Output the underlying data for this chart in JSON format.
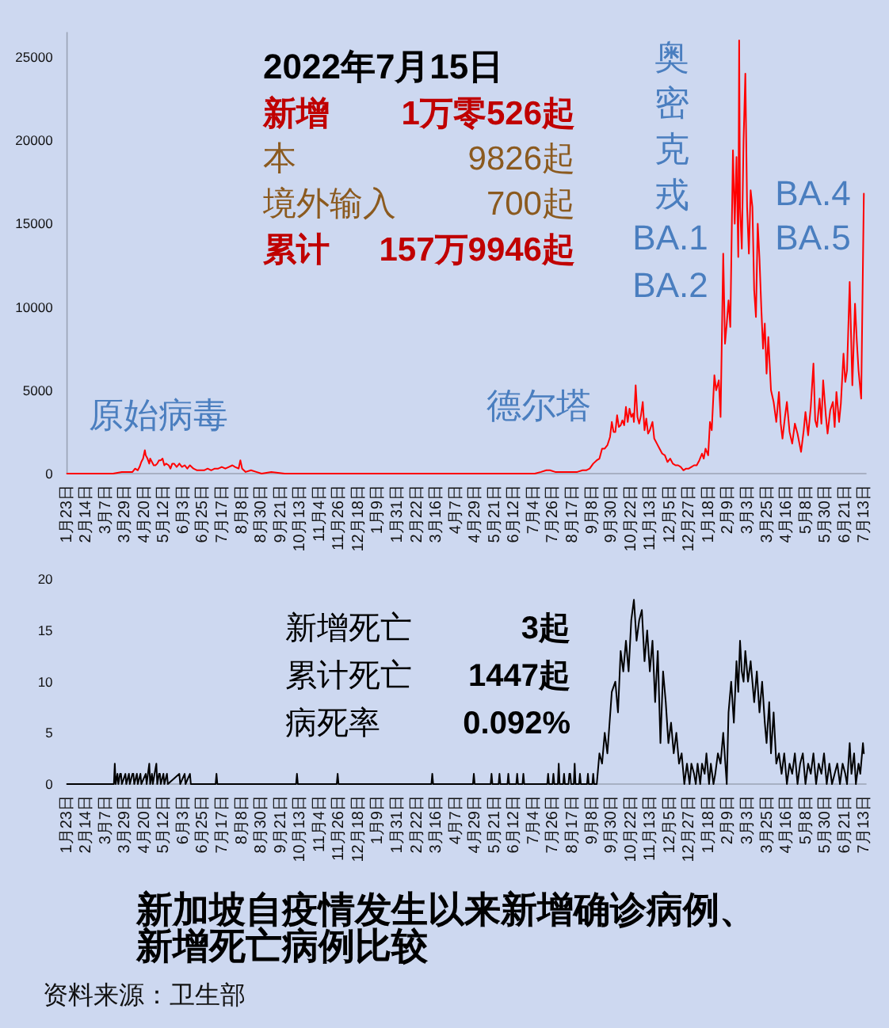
{
  "chart_data": [
    {
      "type": "line",
      "subtitle": "2022年7月15日",
      "x": [
        "2020-01-23",
        "2020-02-10",
        "2020-03-01",
        "2020-03-15",
        "2020-03-25",
        "2020-04-01",
        "2020-04-06",
        "2020-04-09",
        "2020-04-12",
        "2020-04-14",
        "2020-04-16",
        "2020-04-18",
        "2020-04-20",
        "2020-04-21",
        "2020-04-23",
        "2020-04-25",
        "2020-04-26",
        "2020-04-28",
        "2020-04-30",
        "2020-05-02",
        "2020-05-04",
        "2020-05-06",
        "2020-05-08",
        "2020-05-10",
        "2020-05-12",
        "2020-05-14",
        "2020-05-17",
        "2020-05-19",
        "2020-05-21",
        "2020-05-23",
        "2020-05-26",
        "2020-05-29",
        "2020-06-01",
        "2020-06-04",
        "2020-06-07",
        "2020-06-10",
        "2020-06-14",
        "2020-06-18",
        "2020-06-22",
        "2020-06-26",
        "2020-06-30",
        "2020-07-04",
        "2020-07-08",
        "2020-07-12",
        "2020-07-16",
        "2020-07-20",
        "2020-07-24",
        "2020-07-28",
        "2020-07-31",
        "2020-08-04",
        "2020-08-06",
        "2020-08-08",
        "2020-08-12",
        "2020-08-18",
        "2020-08-24",
        "2020-08-30",
        "2020-09-10",
        "2020-09-25",
        "2020-10-15",
        "2020-11-15",
        "2020-12-15",
        "2021-01-15",
        "2021-02-15",
        "2021-03-15",
        "2021-04-15",
        "2021-05-15",
        "2021-05-25",
        "2021-06-15",
        "2021-07-05",
        "2021-07-12",
        "2021-07-18",
        "2021-07-22",
        "2021-07-28",
        "2021-08-05",
        "2021-08-15",
        "2021-08-22",
        "2021-08-28",
        "2021-09-01",
        "2021-09-05",
        "2021-09-09",
        "2021-09-13",
        "2021-09-16",
        "2021-09-19",
        "2021-09-22",
        "2021-09-25",
        "2021-09-28",
        "2021-09-30",
        "2021-10-02",
        "2021-10-04",
        "2021-10-06",
        "2021-10-08",
        "2021-10-10",
        "2021-10-12",
        "2021-10-14",
        "2021-10-16",
        "2021-10-18",
        "2021-10-20",
        "2021-10-22",
        "2021-10-24",
        "2021-10-25",
        "2021-10-27",
        "2021-10-29",
        "2021-10-31",
        "2021-11-02",
        "2021-11-04",
        "2021-11-06",
        "2021-11-08",
        "2021-11-10",
        "2021-11-12",
        "2021-11-15",
        "2021-11-17",
        "2021-11-20",
        "2021-11-23",
        "2021-11-26",
        "2021-11-29",
        "2021-12-02",
        "2021-12-05",
        "2021-12-08",
        "2021-12-11",
        "2021-12-14",
        "2021-12-17",
        "2021-12-20",
        "2021-12-23",
        "2021-12-26",
        "2021-12-29",
        "2022-01-01",
        "2022-01-04",
        "2022-01-07",
        "2022-01-10",
        "2022-01-12",
        "2022-01-14",
        "2022-01-17",
        "2022-01-19",
        "2022-01-21",
        "2022-01-24",
        "2022-01-26",
        "2022-01-29",
        "2022-01-31",
        "2022-02-03",
        "2022-02-05",
        "2022-02-07",
        "2022-02-09",
        "2022-02-11",
        "2022-02-14",
        "2022-02-16",
        "2022-02-18",
        "2022-02-20",
        "2022-02-21",
        "2022-02-22",
        "2022-02-24",
        "2022-02-26",
        "2022-02-28",
        "2022-03-02",
        "2022-03-04",
        "2022-03-06",
        "2022-03-08",
        "2022-03-10",
        "2022-03-12",
        "2022-03-14",
        "2022-03-16",
        "2022-03-18",
        "2022-03-20",
        "2022-03-22",
        "2022-03-24",
        "2022-03-26",
        "2022-03-29",
        "2022-04-01",
        "2022-04-04",
        "2022-04-07",
        "2022-04-09",
        "2022-04-11",
        "2022-04-14",
        "2022-04-16",
        "2022-04-19",
        "2022-04-22",
        "2022-04-25",
        "2022-04-28",
        "2022-05-02",
        "2022-05-05",
        "2022-05-07",
        "2022-05-10",
        "2022-05-13",
        "2022-05-16",
        "2022-05-18",
        "2022-05-20",
        "2022-05-23",
        "2022-05-25",
        "2022-05-27",
        "2022-05-30",
        "2022-06-01",
        "2022-06-04",
        "2022-06-07",
        "2022-06-09",
        "2022-06-11",
        "2022-06-14",
        "2022-06-16",
        "2022-06-19",
        "2022-06-21",
        "2022-06-23",
        "2022-06-26",
        "2022-06-29",
        "2022-07-02",
        "2022-07-04",
        "2022-07-06",
        "2022-07-09",
        "2022-07-12"
      ],
      "series": [
        {
          "color": "#ff0000",
          "values": [
            0,
            0,
            0,
            0,
            100,
            100,
            100,
            300,
            200,
            400,
            700,
            900,
            1400,
            1100,
            900,
            600,
            900,
            700,
            500,
            500,
            600,
            800,
            800,
            900,
            500,
            600,
            500,
            300,
            600,
            600,
            400,
            600,
            400,
            500,
            300,
            500,
            300,
            200,
            200,
            200,
            300,
            200,
            300,
            300,
            400,
            300,
            400,
            500,
            400,
            300,
            800,
            300,
            100,
            200,
            100,
            0,
            100,
            0,
            0,
            0,
            0,
            0,
            0,
            0,
            0,
            0,
            0,
            0,
            0,
            100,
            200,
            200,
            100,
            100,
            100,
            100,
            200,
            200,
            300,
            600,
            800,
            900,
            1500,
            1500,
            1700,
            2200,
            3100,
            2500,
            2500,
            3500,
            2800,
            2900,
            3200,
            2900,
            4000,
            3100,
            3900,
            3400,
            3600,
            3100,
            5300,
            3400,
            3000,
            3500,
            4300,
            2600,
            3300,
            2400,
            2600,
            3100,
            2100,
            1800,
            1500,
            1200,
            1100,
            700,
            900,
            600,
            500,
            500,
            400,
            200,
            300,
            300,
            400,
            500,
            500,
            800,
            1200,
            900,
            1500,
            1100,
            3100,
            2600,
            5900,
            5000,
            5600,
            3400,
            13200,
            7800,
            9000,
            10400,
            8800,
            19400,
            15000,
            19000,
            13000,
            26000,
            16000,
            13500,
            20000,
            24000,
            16000,
            13200,
            17000,
            16000,
            11000,
            9400,
            15000,
            12900,
            10000,
            7500,
            9000,
            6000,
            8200,
            5000,
            4300,
            3100,
            4900,
            3000,
            2100,
            3500,
            4300,
            2500,
            1800,
            3000,
            2400,
            1300,
            2600,
            3700,
            2300,
            4000,
            6600,
            3200,
            2800,
            4500,
            3000,
            5600,
            3500,
            2400,
            3800,
            4300,
            2800,
            4900,
            3100,
            4200,
            7200,
            5500,
            6200,
            11500,
            5300,
            10200,
            8000,
            6200,
            4500,
            16800
          ]
        }
      ],
      "xlim": [
        "2020-01-23",
        "2022-07-15"
      ],
      "xticks": [
        {
          "value": "2020-01-23",
          "label": "1月23日"
        },
        {
          "value": "2020-02-14",
          "label": "2月14日"
        },
        {
          "value": "2020-03-07",
          "label": "3月7日"
        },
        {
          "value": "2020-03-29",
          "label": "3月29日"
        },
        {
          "value": "2020-04-20",
          "label": "4月20日"
        },
        {
          "value": "2020-05-12",
          "label": "5月12日"
        },
        {
          "value": "2020-06-03",
          "label": "6月3日"
        },
        {
          "value": "2020-06-25",
          "label": "6月25日"
        },
        {
          "value": "2020-07-17",
          "label": "7月17日"
        },
        {
          "value": "2020-08-08",
          "label": "8月8日"
        },
        {
          "value": "2020-08-30",
          "label": "8月30日"
        },
        {
          "value": "2020-09-21",
          "label": "9月21日"
        },
        {
          "value": "2020-10-13",
          "label": "10月13日"
        },
        {
          "value": "2020-11-04",
          "label": "11月4日"
        },
        {
          "value": "2020-11-26",
          "label": "11月26日"
        },
        {
          "value": "2020-12-18",
          "label": "12月18日"
        },
        {
          "value": "2021-01-09",
          "label": "1月9日"
        },
        {
          "value": "2021-01-31",
          "label": "1月31日"
        },
        {
          "value": "2021-02-22",
          "label": "2月22日"
        },
        {
          "value": "2021-03-16",
          "label": "3月16日"
        },
        {
          "value": "2021-04-07",
          "label": "4月7日"
        },
        {
          "value": "2021-04-29",
          "label": "4月29日"
        },
        {
          "value": "2021-05-21",
          "label": "5月21日"
        },
        {
          "value": "2021-06-12",
          "label": "6月12日"
        },
        {
          "value": "2021-07-04",
          "label": "7月4日"
        },
        {
          "value": "2021-07-26",
          "label": "7月26日"
        },
        {
          "value": "2021-08-17",
          "label": "8月17日"
        },
        {
          "value": "2021-09-08",
          "label": "9月8日"
        },
        {
          "value": "2021-09-30",
          "label": "9月30日"
        },
        {
          "value": "2021-10-22",
          "label": "10月22日"
        },
        {
          "value": "2021-11-13",
          "label": "11月13日"
        },
        {
          "value": "2021-12-05",
          "label": "12月5日"
        },
        {
          "value": "2021-12-27",
          "label": "12月27日"
        },
        {
          "value": "2022-01-18",
          "label": "1月18日"
        },
        {
          "value": "2022-02-09",
          "label": "2月9日"
        },
        {
          "value": "2022-03-03",
          "label": "3月3日"
        },
        {
          "value": "2022-03-25",
          "label": "3月25日"
        },
        {
          "value": "2022-04-16",
          "label": "4月16日"
        },
        {
          "value": "2022-05-08",
          "label": "5月8日"
        },
        {
          "value": "2022-05-30",
          "label": "5月30日"
        },
        {
          "value": "2022-06-21",
          "label": "6月21日"
        },
        {
          "value": "2022-07-13",
          "label": "7月13日"
        }
      ],
      "ylim": [
        0,
        26500
      ],
      "yticks": [
        0,
        5000,
        10000,
        15000,
        20000,
        25000
      ],
      "annotations": [
        "新增",
        "1万零526起",
        "本",
        "9826起",
        "境外输入",
        "700起",
        "累计",
        "157万9946起",
        "原始病毒",
        "德尔塔",
        "奥密克戎",
        "BA.1",
        "BA.2",
        "BA.4",
        "BA.5"
      ]
    },
    {
      "type": "line",
      "title": "新加坡自疫情发生以来新增确诊病例、新增死亡病例比较",
      "x": [
        "2020-01-23",
        "2020-03-16",
        "2020-03-17",
        "2020-03-18",
        "2020-03-20",
        "2020-03-21",
        "2020-03-23",
        "2020-03-24",
        "2020-03-25",
        "2020-03-29",
        "2020-03-30",
        "2020-04-02",
        "2020-04-03",
        "2020-04-06",
        "2020-04-07",
        "2020-04-08",
        "2020-04-11",
        "2020-04-12",
        "2020-04-15",
        "2020-04-16",
        "2020-04-21",
        "2020-04-22",
        "2020-04-25",
        "2020-04-26",
        "2020-04-28",
        "2020-04-29",
        "2020-05-03",
        "2020-05-04",
        "2020-05-06",
        "2020-05-07",
        "2020-05-08",
        "2020-05-11",
        "2020-05-12",
        "2020-05-15",
        "2020-05-16",
        "2020-05-29",
        "2020-05-30",
        "2020-06-04",
        "2020-06-05",
        "2020-06-10",
        "2020-06-11",
        "2020-07-09",
        "2020-07-10",
        "2020-07-11",
        "2020-10-08",
        "2020-10-09",
        "2020-10-10",
        "2020-11-23",
        "2020-11-24",
        "2020-11-25",
        "2021-03-10",
        "2021-03-11",
        "2021-03-12",
        "2021-04-26",
        "2021-04-27",
        "2021-04-28",
        "2021-05-16",
        "2021-05-17",
        "2021-05-18",
        "2021-05-25",
        "2021-05-26",
        "2021-05-27",
        "2021-06-04",
        "2021-06-05",
        "2021-06-06",
        "2021-06-14",
        "2021-06-15",
        "2021-06-16",
        "2021-06-21",
        "2021-06-22",
        "2021-06-23",
        "2021-07-19",
        "2021-07-20",
        "2021-07-21",
        "2021-07-25",
        "2021-07-26",
        "2021-07-27",
        "2021-07-31",
        "2021-08-01",
        "2021-08-02",
        "2021-08-06",
        "2021-08-07",
        "2021-08-08",
        "2021-08-12",
        "2021-08-13",
        "2021-08-14",
        "2021-08-15",
        "2021-08-18",
        "2021-08-19",
        "2021-08-20",
        "2021-08-24",
        "2021-08-25",
        "2021-08-26",
        "2021-09-02",
        "2021-09-03",
        "2021-09-04",
        "2021-09-08",
        "2021-09-09",
        "2021-09-10",
        "2021-09-13",
        "2021-09-16",
        "2021-09-19",
        "2021-09-22",
        "2021-09-25",
        "2021-09-30",
        "2021-10-04",
        "2021-10-07",
        "2021-10-10",
        "2021-10-13",
        "2021-10-16",
        "2021-10-19",
        "2021-10-22",
        "2021-10-25",
        "2021-10-28",
        "2021-10-31",
        "2021-11-03",
        "2021-11-06",
        "2021-11-09",
        "2021-11-12",
        "2021-11-15",
        "2021-11-18",
        "2021-11-21",
        "2021-11-24",
        "2021-11-27",
        "2021-11-30",
        "2021-12-03",
        "2021-12-06",
        "2021-12-09",
        "2021-12-12",
        "2021-12-15",
        "2021-12-18",
        "2021-12-21",
        "2021-12-24",
        "2021-12-27",
        "2021-12-29",
        "2022-01-01",
        "2022-01-03",
        "2022-01-05",
        "2022-01-08",
        "2022-01-10",
        "2022-01-13",
        "2022-01-15",
        "2022-01-18",
        "2022-01-20",
        "2022-01-23",
        "2022-01-25",
        "2022-01-28",
        "2022-01-31",
        "2022-02-03",
        "2022-02-07",
        "2022-02-09",
        "2022-02-12",
        "2022-02-15",
        "2022-02-18",
        "2022-02-20",
        "2022-02-22",
        "2022-02-24",
        "2022-02-26",
        "2022-02-28",
        "2022-03-03",
        "2022-03-06",
        "2022-03-10",
        "2022-03-13",
        "2022-03-16",
        "2022-03-19",
        "2022-03-22",
        "2022-03-24",
        "2022-03-27",
        "2022-03-29",
        "2022-04-01",
        "2022-04-04",
        "2022-04-07",
        "2022-04-10",
        "2022-04-13",
        "2022-04-16",
        "2022-04-19",
        "2022-04-22",
        "2022-04-25",
        "2022-04-28",
        "2022-05-01",
        "2022-05-04",
        "2022-05-07",
        "2022-05-10",
        "2022-05-13",
        "2022-05-16",
        "2022-05-19",
        "2022-05-22",
        "2022-05-25",
        "2022-05-28",
        "2022-05-31",
        "2022-06-03",
        "2022-06-06",
        "2022-06-09",
        "2022-06-12",
        "2022-06-15",
        "2022-06-18",
        "2022-06-21",
        "2022-06-23",
        "2022-06-26",
        "2022-06-28",
        "2022-07-01",
        "2022-07-03",
        "2022-07-06",
        "2022-07-08",
        "2022-07-11",
        "2022-07-12"
      ],
      "series": [
        {
          "color": "#000000",
          "values": [
            0,
            0,
            2,
            0,
            1,
            0,
            1,
            1,
            0,
            1,
            0,
            1,
            0,
            1,
            1,
            0,
            1,
            0,
            1,
            0,
            1,
            0,
            2,
            0,
            1,
            0,
            2,
            0,
            1,
            1,
            0,
            1,
            0,
            1,
            0,
            1,
            0,
            1,
            0,
            1,
            0,
            0,
            1,
            0,
            0,
            1,
            0,
            0,
            1,
            0,
            0,
            1,
            0,
            0,
            1,
            0,
            0,
            1,
            0,
            0,
            1,
            0,
            0,
            1,
            0,
            0,
            1,
            0,
            0,
            1,
            0,
            0,
            1,
            0,
            0,
            1,
            0,
            0,
            2,
            0,
            0,
            1,
            0,
            0,
            1,
            1,
            0,
            0,
            2,
            0,
            0,
            1,
            0,
            0,
            1,
            0,
            0,
            1,
            0,
            0,
            3,
            2,
            5,
            3,
            9,
            10,
            7,
            13,
            11,
            14,
            11,
            16,
            18,
            14,
            16,
            17,
            12,
            15,
            11,
            14,
            8,
            13,
            4,
            11,
            8,
            4,
            6,
            3,
            5,
            2,
            3,
            0,
            2,
            0,
            2,
            1,
            0,
            2,
            0,
            2,
            1,
            3,
            0,
            2,
            0,
            1,
            3,
            2,
            5,
            0,
            7,
            10,
            6,
            12,
            9,
            14,
            11,
            10,
            13,
            10,
            12,
            8,
            11,
            7,
            10,
            6,
            4,
            8,
            3,
            7,
            2,
            3,
            1,
            3,
            0,
            2,
            1,
            3,
            0,
            2,
            3,
            0,
            2,
            1,
            3,
            0,
            2,
            1,
            3,
            0,
            2,
            0,
            1,
            2,
            0,
            2,
            1,
            0,
            4,
            1,
            3,
            0,
            2,
            1,
            4,
            3
          ]
        }
      ],
      "xlim": [
        "2020-01-23",
        "2022-07-15"
      ],
      "xticks": [
        {
          "value": "2020-01-23",
          "label": "1月23日"
        },
        {
          "value": "2020-02-14",
          "label": "2月14日"
        },
        {
          "value": "2020-03-07",
          "label": "3月7日"
        },
        {
          "value": "2020-03-29",
          "label": "3月29日"
        },
        {
          "value": "2020-04-20",
          "label": "4月20日"
        },
        {
          "value": "2020-05-12",
          "label": "5月12日"
        },
        {
          "value": "2020-06-03",
          "label": "6月3日"
        },
        {
          "value": "2020-06-25",
          "label": "6月25日"
        },
        {
          "value": "2020-07-17",
          "label": "7月17日"
        },
        {
          "value": "2020-08-08",
          "label": "8月8日"
        },
        {
          "value": "2020-08-30",
          "label": "8月30日"
        },
        {
          "value": "2020-09-21",
          "label": "9月21日"
        },
        {
          "value": "2020-10-13",
          "label": "10月13日"
        },
        {
          "value": "2020-11-04",
          "label": "11月4日"
        },
        {
          "value": "2020-11-26",
          "label": "11月26日"
        },
        {
          "value": "2020-12-18",
          "label": "12月18日"
        },
        {
          "value": "2021-01-09",
          "label": "1月9日"
        },
        {
          "value": "2021-01-31",
          "label": "1月31日"
        },
        {
          "value": "2021-02-22",
          "label": "2月22日"
        },
        {
          "value": "2021-03-16",
          "label": "3月16日"
        },
        {
          "value": "2021-04-07",
          "label": "4月7日"
        },
        {
          "value": "2021-04-29",
          "label": "4月29日"
        },
        {
          "value": "2021-05-21",
          "label": "5月21日"
        },
        {
          "value": "2021-06-12",
          "label": "6月12日"
        },
        {
          "value": "2021-07-04",
          "label": "7月4日"
        },
        {
          "value": "2021-07-26",
          "label": "7月26日"
        },
        {
          "value": "2021-08-17",
          "label": "8月17日"
        },
        {
          "value": "2021-09-08",
          "label": "9月8日"
        },
        {
          "value": "2021-09-30",
          "label": "9月30日"
        },
        {
          "value": "2021-10-22",
          "label": "10月22日"
        },
        {
          "value": "2021-11-13",
          "label": "11月13日"
        },
        {
          "value": "2021-12-05",
          "label": "12月5日"
        },
        {
          "value": "2021-12-27",
          "label": "12月27日"
        },
        {
          "value": "2022-01-18",
          "label": "1月18日"
        },
        {
          "value": "2022-02-09",
          "label": "2月9日"
        },
        {
          "value": "2022-03-03",
          "label": "3月3日"
        },
        {
          "value": "2022-03-25",
          "label": "3月25日"
        },
        {
          "value": "2022-04-16",
          "label": "4月16日"
        },
        {
          "value": "2022-05-08",
          "label": "5月8日"
        },
        {
          "value": "2022-05-30",
          "label": "5月30日"
        },
        {
          "value": "2022-06-21",
          "label": "6月21日"
        },
        {
          "value": "2022-07-13",
          "label": "7月13日"
        }
      ],
      "ylim": [
        0,
        20
      ],
      "yticks": [
        0,
        5,
        10,
        15,
        20
      ],
      "annotations": [
        "新增死亡",
        "3起",
        "累计死亡",
        "1447起",
        "病死率",
        "0.092%",
        "资料来源：卫生部"
      ]
    }
  ]
}
